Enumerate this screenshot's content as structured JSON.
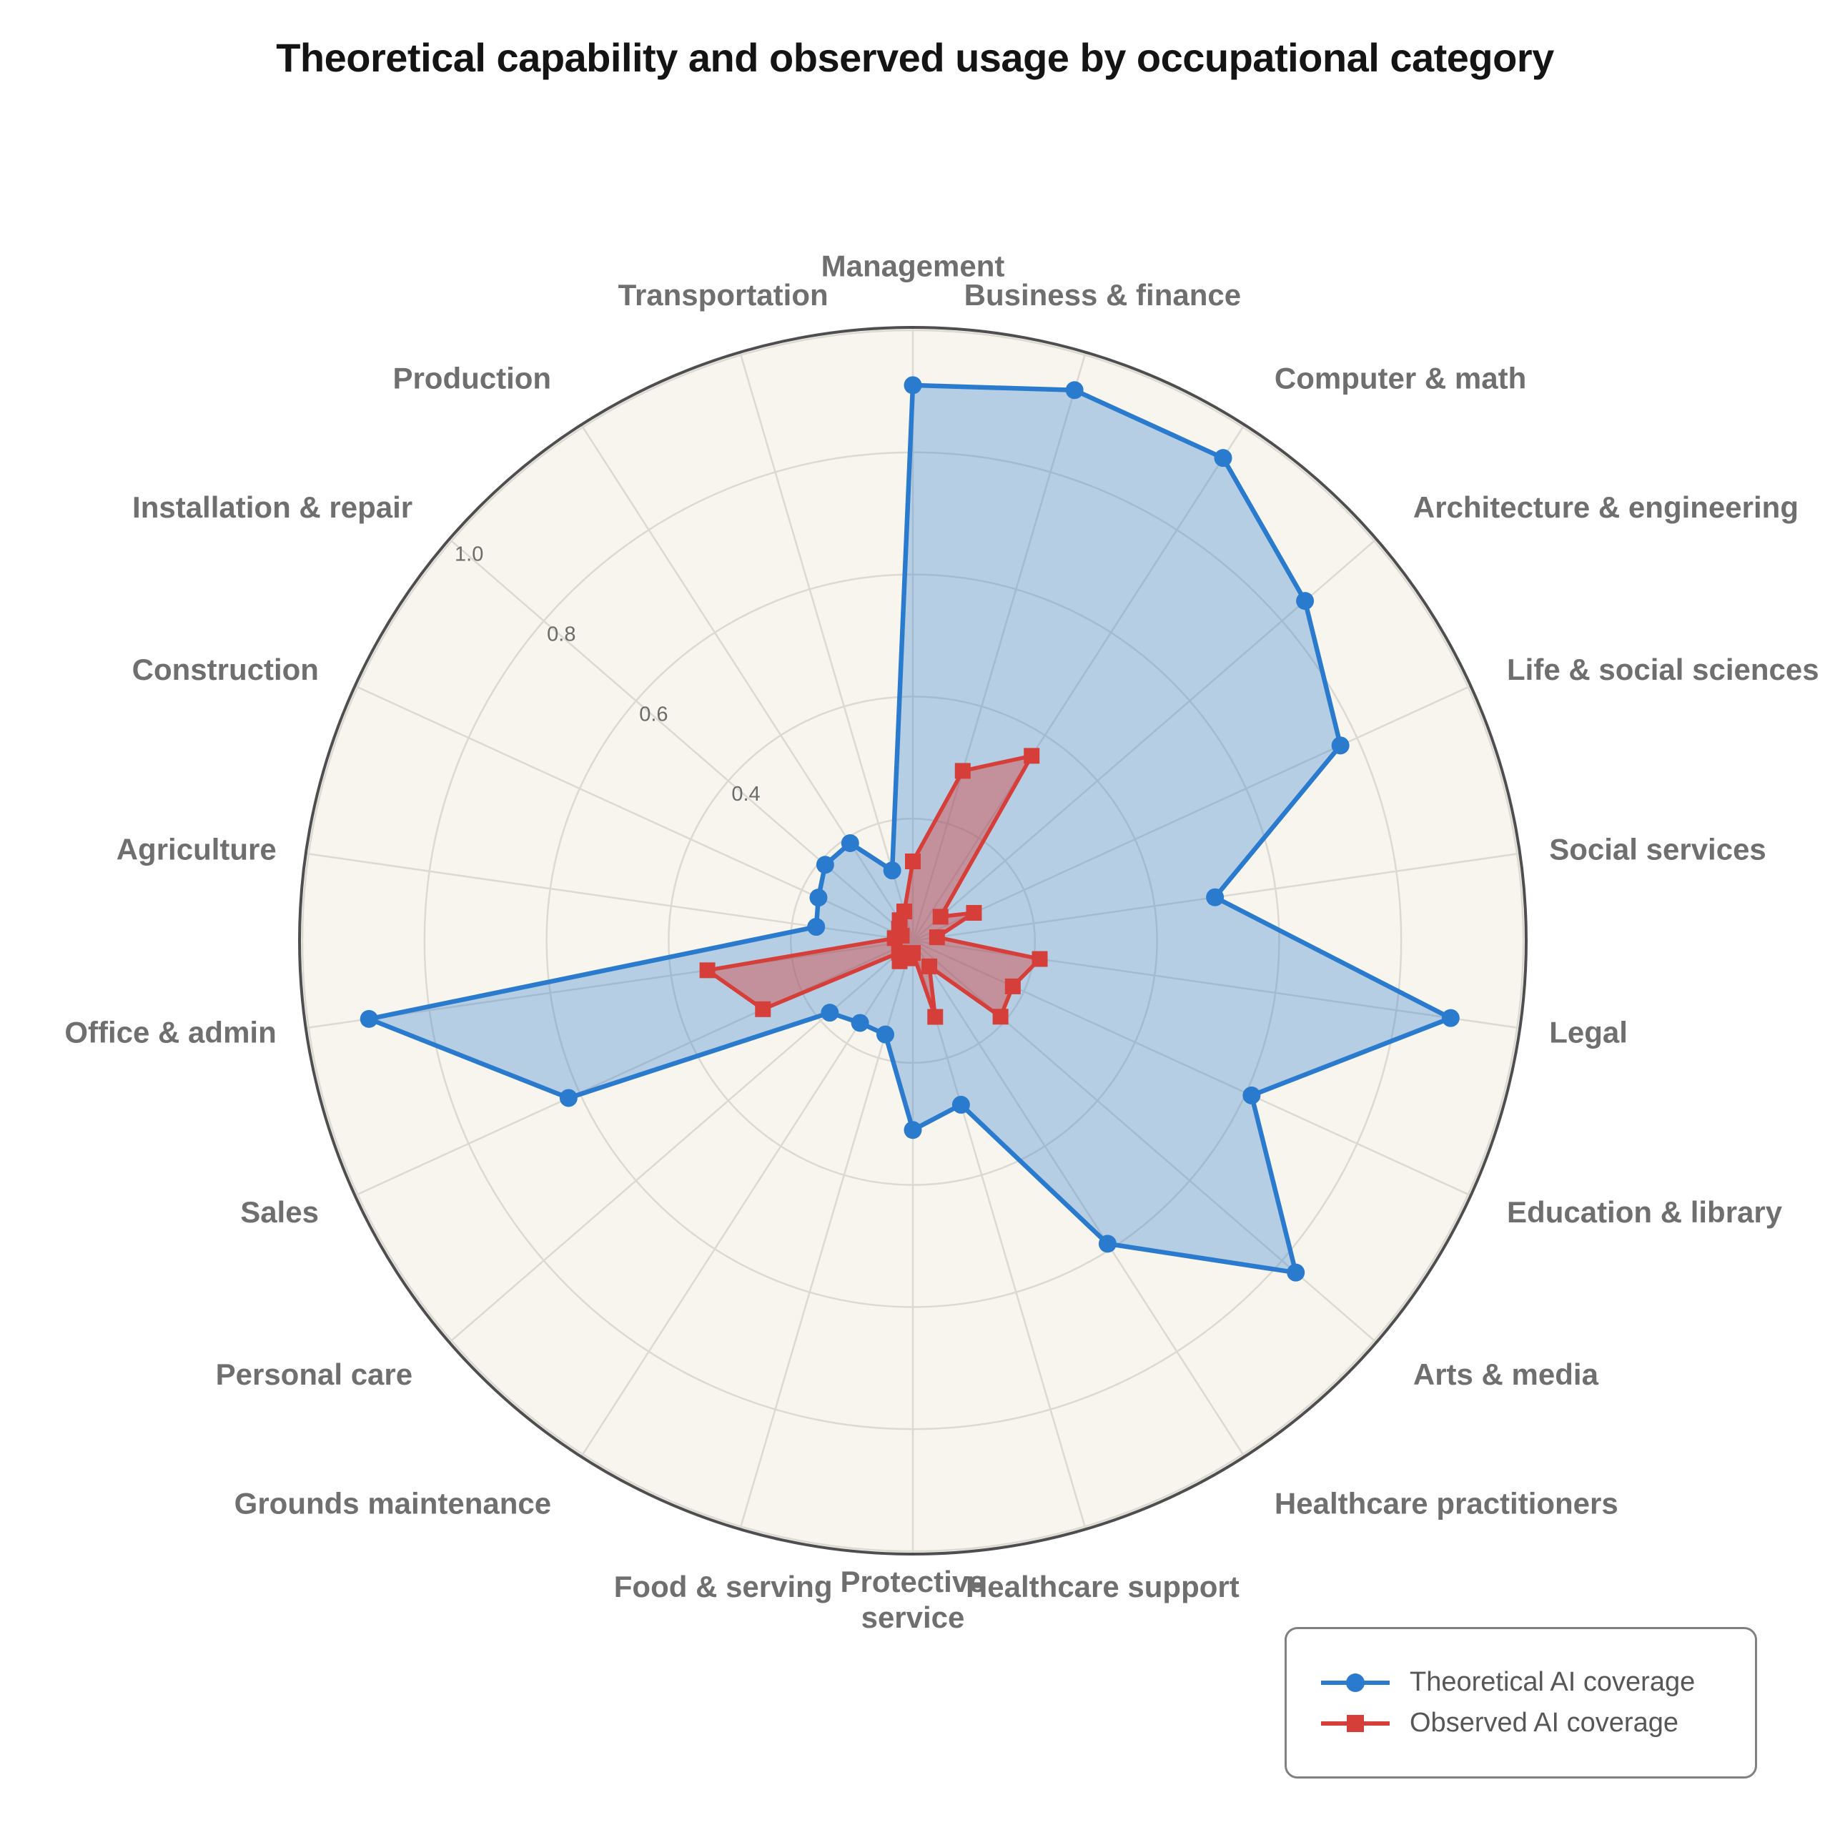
{
  "title": "Theoretical capability and observed usage by occupational category",
  "chart_data": {
    "type": "line",
    "variant": "polar-radar",
    "title": "Theoretical capability and observed usage by occupational category",
    "direction": "clockwise",
    "start_angle_deg": 0,
    "grid": true,
    "legend_position": "lower right",
    "r_axis": {
      "rmax": 1.0,
      "grid_step": 0.2,
      "ticks": [
        "0.4",
        "0.6",
        "0.8",
        "1.0"
      ],
      "tick_values": [
        0.4,
        0.6,
        0.8,
        1.0
      ],
      "tick_angle_deg": 310.9
    },
    "categories": [
      {
        "label": "Management"
      },
      {
        "label": "Business & finance"
      },
      {
        "label": "Computer & math"
      },
      {
        "label": "Architecture & engineering"
      },
      {
        "label": "Life & social sciences"
      },
      {
        "label": "Social services"
      },
      {
        "label": "Legal"
      },
      {
        "label": "Education & library"
      },
      {
        "label": "Arts & media"
      },
      {
        "label": "Healthcare practitioners"
      },
      {
        "label": "Healthcare support"
      },
      {
        "label": "Protective service",
        "two_line": true
      },
      {
        "label": "Food & serving"
      },
      {
        "label": "Grounds maintenance"
      },
      {
        "label": "Personal care"
      },
      {
        "label": "Sales"
      },
      {
        "label": "Office & admin"
      },
      {
        "label": "Agriculture"
      },
      {
        "label": "Construction"
      },
      {
        "label": "Installation & repair"
      },
      {
        "label": "Production"
      },
      {
        "label": "Transportation"
      }
    ],
    "series": [
      {
        "name": "Theoretical AI coverage",
        "marker": "circle",
        "values": [
          0.91,
          0.94,
          0.94,
          0.85,
          0.77,
          0.5,
          0.89,
          0.61,
          0.83,
          0.59,
          0.28,
          0.31,
          0.16,
          0.16,
          0.18,
          0.62,
          0.9,
          0.16,
          0.17,
          0.19,
          0.19,
          0.12
        ]
      },
      {
        "name": "Observed AI coverage",
        "marker": "square",
        "values": [
          0.13,
          0.29,
          0.36,
          0.06,
          0.11,
          0.04,
          0.21,
          0.18,
          0.19,
          0.05,
          0.13,
          0.02,
          0.03,
          0.04,
          0.03,
          0.27,
          0.34,
          0.03,
          0.02,
          0.03,
          0.04,
          0.05
        ]
      }
    ],
    "layout_hints": {
      "center_x": 1277,
      "center_y": 1316,
      "radius_px": 854
    }
  },
  "legend": {
    "items": [
      {
        "label": "Theoretical AI coverage",
        "marker": "circle"
      },
      {
        "label": "Observed AI coverage",
        "marker": "square"
      }
    ]
  },
  "style": {
    "blue": "#2a7bce",
    "blue_fill_opacity": 0.32,
    "red": "#d63e3a",
    "red_fill_opacity": 0.42,
    "circle_bg": "#f8f5ef",
    "grid_color": "#dcd9d2",
    "outer_ring_color": "#4e4e4e",
    "category_label_color": "#6f6f6f",
    "tick_label_color": "#6b6b6b",
    "title_color": "#141414",
    "legend_text_color": "#575757",
    "legend_border_color": "#808080"
  }
}
